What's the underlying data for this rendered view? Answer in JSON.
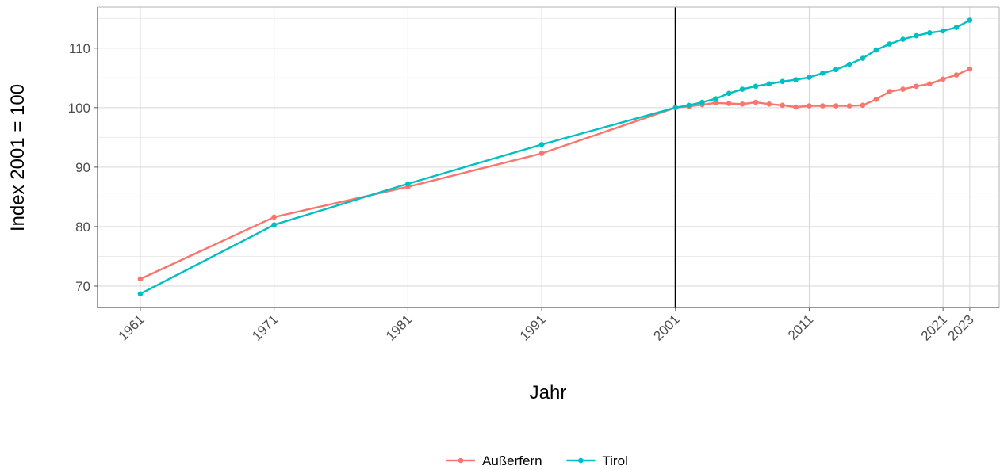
{
  "chart_data": {
    "type": "line",
    "xlabel": "Jahr",
    "ylabel": "Index 2001 = 100",
    "xlim": [
      1957.8,
      2025.2
    ],
    "ylim": [
      66.4,
      116.9
    ],
    "x_ticks": [
      1961,
      1971,
      1981,
      1991,
      2001,
      2011,
      2021,
      2023
    ],
    "y_ticks": [
      70,
      80,
      90,
      100,
      110
    ],
    "grid": true,
    "reference_line": {
      "x": 2001,
      "color": "#000000"
    },
    "legend_position": "bottom",
    "series": [
      {
        "name": "Außerfern",
        "color": "#F8766D",
        "points": [
          [
            1961,
            71.2
          ],
          [
            1971,
            81.6
          ],
          [
            1981,
            86.7
          ],
          [
            1991,
            92.3
          ],
          [
            2001,
            100.0
          ],
          [
            2002,
            100.2
          ],
          [
            2003,
            100.5
          ],
          [
            2004,
            100.8
          ],
          [
            2005,
            100.7
          ],
          [
            2006,
            100.6
          ],
          [
            2007,
            100.9
          ],
          [
            2008,
            100.6
          ],
          [
            2009,
            100.4
          ],
          [
            2010,
            100.1
          ],
          [
            2011,
            100.3
          ],
          [
            2012,
            100.3
          ],
          [
            2013,
            100.3
          ],
          [
            2014,
            100.3
          ],
          [
            2015,
            100.4
          ],
          [
            2016,
            101.4
          ],
          [
            2017,
            102.7
          ],
          [
            2018,
            103.1
          ],
          [
            2019,
            103.6
          ],
          [
            2020,
            104.0
          ],
          [
            2021,
            104.8
          ],
          [
            2022,
            105.5
          ],
          [
            2023,
            106.5
          ]
        ]
      },
      {
        "name": "Tirol",
        "color": "#00BFC4",
        "points": [
          [
            1961,
            68.7
          ],
          [
            1971,
            80.3
          ],
          [
            1981,
            87.2
          ],
          [
            1991,
            93.8
          ],
          [
            2001,
            100.0
          ],
          [
            2002,
            100.4
          ],
          [
            2003,
            100.9
          ],
          [
            2004,
            101.5
          ],
          [
            2005,
            102.4
          ],
          [
            2006,
            103.1
          ],
          [
            2007,
            103.6
          ],
          [
            2008,
            104.0
          ],
          [
            2009,
            104.4
          ],
          [
            2010,
            104.7
          ],
          [
            2011,
            105.1
          ],
          [
            2012,
            105.8
          ],
          [
            2013,
            106.4
          ],
          [
            2014,
            107.3
          ],
          [
            2015,
            108.3
          ],
          [
            2016,
            109.7
          ],
          [
            2017,
            110.7
          ],
          [
            2018,
            111.5
          ],
          [
            2019,
            112.1
          ],
          [
            2020,
            112.6
          ],
          [
            2021,
            112.9
          ],
          [
            2022,
            113.5
          ],
          [
            2023,
            114.7
          ]
        ]
      }
    ]
  }
}
